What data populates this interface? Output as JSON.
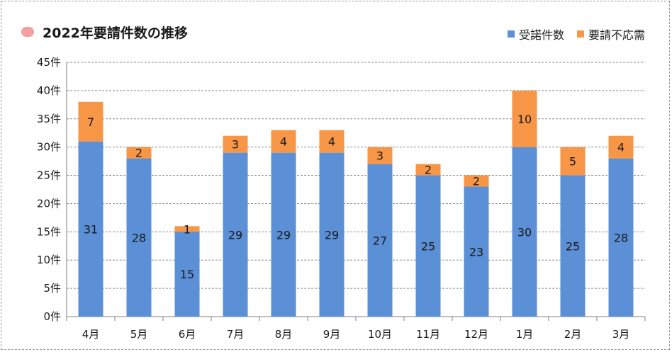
{
  "chart_data": {
    "type": "bar",
    "stacked": true,
    "title": "2022年要請件数の推移",
    "categories": [
      "4月",
      "5月",
      "6月",
      "7月",
      "8月",
      "9月",
      "10月",
      "11月",
      "12月",
      "1月",
      "2月",
      "3月"
    ],
    "series": [
      {
        "name": "受諾件数",
        "color": "#5b8fd6",
        "values": [
          31,
          28,
          15,
          29,
          29,
          29,
          27,
          25,
          23,
          30,
          25,
          28
        ]
      },
      {
        "name": "要請不応需",
        "color": "#f79646",
        "values": [
          7,
          2,
          1,
          3,
          4,
          4,
          3,
          2,
          2,
          10,
          5,
          4
        ]
      }
    ],
    "ylim": [
      0,
      45
    ],
    "yticks": [
      "0件",
      "5件",
      "10件",
      "15件",
      "20件",
      "25件",
      "30件",
      "35件",
      "40件",
      "45件"
    ],
    "grid": true,
    "legend_position": "top-right",
    "title_marker_color": "#f4a0a0"
  }
}
